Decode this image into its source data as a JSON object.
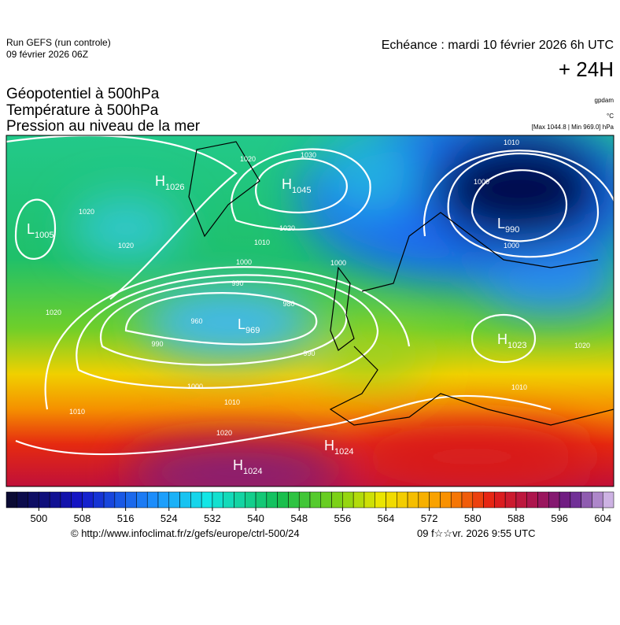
{
  "header": {
    "run": "Run GEFS (run controle)",
    "run_date": "09 février 2026 06Z",
    "valid": "Echéance : mardi 10 février 2026 6h UTC",
    "lead": "+ 24H"
  },
  "titles": [
    "Géopotentiel à 500hPa",
    "Température à 500hPa",
    "Pression au niveau de la mer"
  ],
  "units": {
    "geopotential": "gpdam",
    "temperature": "°C",
    "pressure": "[Max 1044.8 | Min 969.0] hPa"
  },
  "centers": [
    {
      "type": "L",
      "value": 1005
    },
    {
      "type": "H",
      "value": 1026
    },
    {
      "type": "H",
      "value": 1045
    },
    {
      "type": "L",
      "value": 990
    },
    {
      "type": "L",
      "value": 969
    },
    {
      "type": "H",
      "value": 1023
    },
    {
      "type": "H",
      "value": 1024
    },
    {
      "type": "H",
      "value": 1024
    }
  ],
  "isobar_labels": [
    1020,
    1030,
    1020,
    1010,
    1000,
    1000,
    990,
    980,
    960,
    990,
    990,
    1000,
    1010,
    1020,
    1010,
    1020,
    1010,
    1000,
    1000,
    1020,
    1010,
    1020,
    1020
  ],
  "colorbar": {
    "lim": [
      494,
      606
    ],
    "ticks": [
      500,
      508,
      516,
      524,
      532,
      540,
      548,
      556,
      564,
      572,
      580,
      588,
      596,
      604
    ]
  },
  "footer": {
    "source": "© http://www.infoclimat.fr/z/gefs/europe/ctrl-500/24",
    "generated": "09 f☆☆vr. 2026  9:55 UTC"
  }
}
